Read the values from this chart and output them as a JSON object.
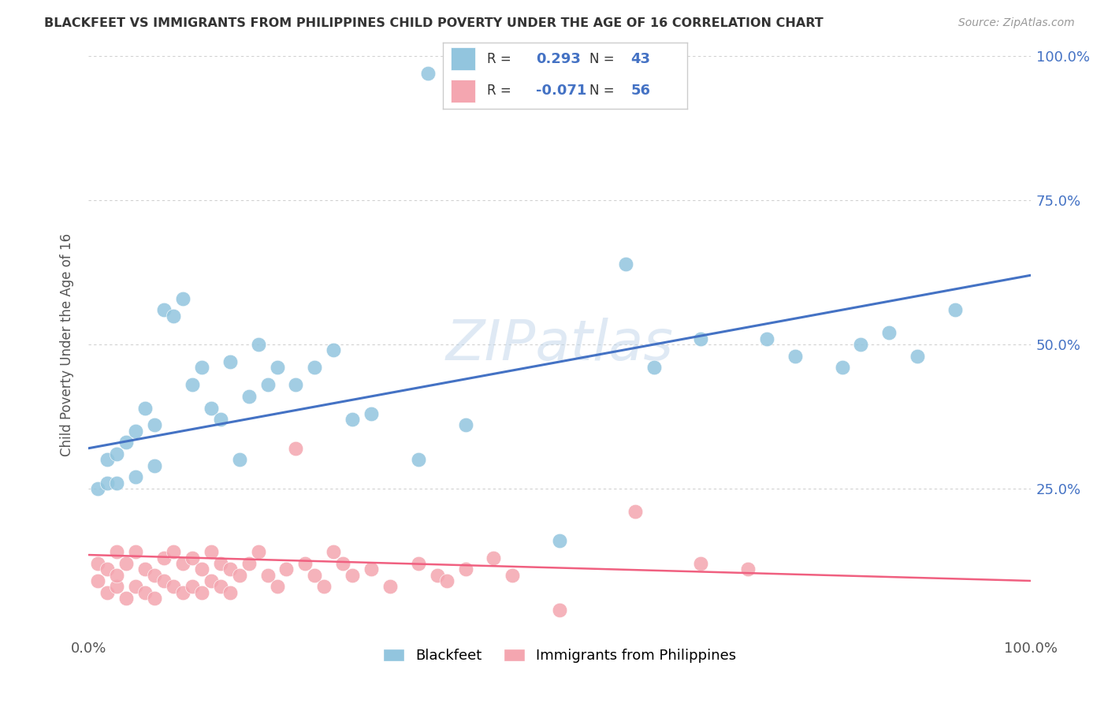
{
  "title": "BLACKFEET VS IMMIGRANTS FROM PHILIPPINES CHILD POVERTY UNDER THE AGE OF 16 CORRELATION CHART",
  "source": "Source: ZipAtlas.com",
  "ylabel": "Child Poverty Under the Age of 16",
  "xlabel": "",
  "xlim": [
    0.0,
    1.0
  ],
  "ylim": [
    0.0,
    1.0
  ],
  "xticks": [
    0.0,
    1.0
  ],
  "xtick_labels": [
    "0.0%",
    "100.0%"
  ],
  "ytick_labels": [
    "25.0%",
    "50.0%",
    "75.0%",
    "100.0%"
  ],
  "yticks": [
    0.25,
    0.5,
    0.75,
    1.0
  ],
  "r_blackfeet": 0.293,
  "n_blackfeet": 43,
  "r_philippines": -0.071,
  "n_philippines": 56,
  "blackfeet_color": "#92C5DE",
  "philippines_color": "#F4A6B0",
  "blackfeet_line_color": "#4472C4",
  "philippines_line_color": "#F06080",
  "legend_label_blackfeet": "Blackfeet",
  "legend_label_philippines": "Immigrants from Philippines",
  "watermark": "ZIPatlas",
  "bf_line_start_y": 0.32,
  "bf_line_end_y": 0.62,
  "ph_line_start_y": 0.135,
  "ph_line_end_y": 0.09,
  "blackfeet_scatter_x": [
    0.01,
    0.02,
    0.02,
    0.03,
    0.03,
    0.04,
    0.05,
    0.05,
    0.06,
    0.07,
    0.07,
    0.08,
    0.09,
    0.1,
    0.11,
    0.12,
    0.13,
    0.14,
    0.15,
    0.16,
    0.17,
    0.18,
    0.19,
    0.2,
    0.22,
    0.24,
    0.26,
    0.28,
    0.3,
    0.35,
    0.36,
    0.4,
    0.5,
    0.57,
    0.6,
    0.65,
    0.72,
    0.75,
    0.8,
    0.82,
    0.85,
    0.88,
    0.92
  ],
  "blackfeet_scatter_y": [
    0.25,
    0.26,
    0.3,
    0.26,
    0.31,
    0.33,
    0.35,
    0.27,
    0.39,
    0.36,
    0.29,
    0.56,
    0.55,
    0.58,
    0.43,
    0.46,
    0.39,
    0.37,
    0.47,
    0.3,
    0.41,
    0.5,
    0.43,
    0.46,
    0.43,
    0.46,
    0.49,
    0.37,
    0.38,
    0.3,
    0.97,
    0.36,
    0.16,
    0.64,
    0.46,
    0.51,
    0.51,
    0.48,
    0.46,
    0.5,
    0.52,
    0.48,
    0.56
  ],
  "philippines_scatter_x": [
    0.01,
    0.01,
    0.02,
    0.02,
    0.03,
    0.03,
    0.03,
    0.04,
    0.04,
    0.05,
    0.05,
    0.06,
    0.06,
    0.07,
    0.07,
    0.08,
    0.08,
    0.09,
    0.09,
    0.1,
    0.1,
    0.11,
    0.11,
    0.12,
    0.12,
    0.13,
    0.13,
    0.14,
    0.14,
    0.15,
    0.15,
    0.16,
    0.17,
    0.18,
    0.19,
    0.2,
    0.21,
    0.22,
    0.23,
    0.24,
    0.25,
    0.26,
    0.27,
    0.28,
    0.3,
    0.32,
    0.35,
    0.37,
    0.38,
    0.4,
    0.43,
    0.45,
    0.5,
    0.58,
    0.65,
    0.7
  ],
  "philippines_scatter_y": [
    0.12,
    0.09,
    0.07,
    0.11,
    0.08,
    0.1,
    0.14,
    0.06,
    0.12,
    0.08,
    0.14,
    0.07,
    0.11,
    0.06,
    0.1,
    0.09,
    0.13,
    0.08,
    0.14,
    0.07,
    0.12,
    0.08,
    0.13,
    0.07,
    0.11,
    0.09,
    0.14,
    0.08,
    0.12,
    0.07,
    0.11,
    0.1,
    0.12,
    0.14,
    0.1,
    0.08,
    0.11,
    0.32,
    0.12,
    0.1,
    0.08,
    0.14,
    0.12,
    0.1,
    0.11,
    0.08,
    0.12,
    0.1,
    0.09,
    0.11,
    0.13,
    0.1,
    0.04,
    0.21,
    0.12,
    0.11
  ]
}
